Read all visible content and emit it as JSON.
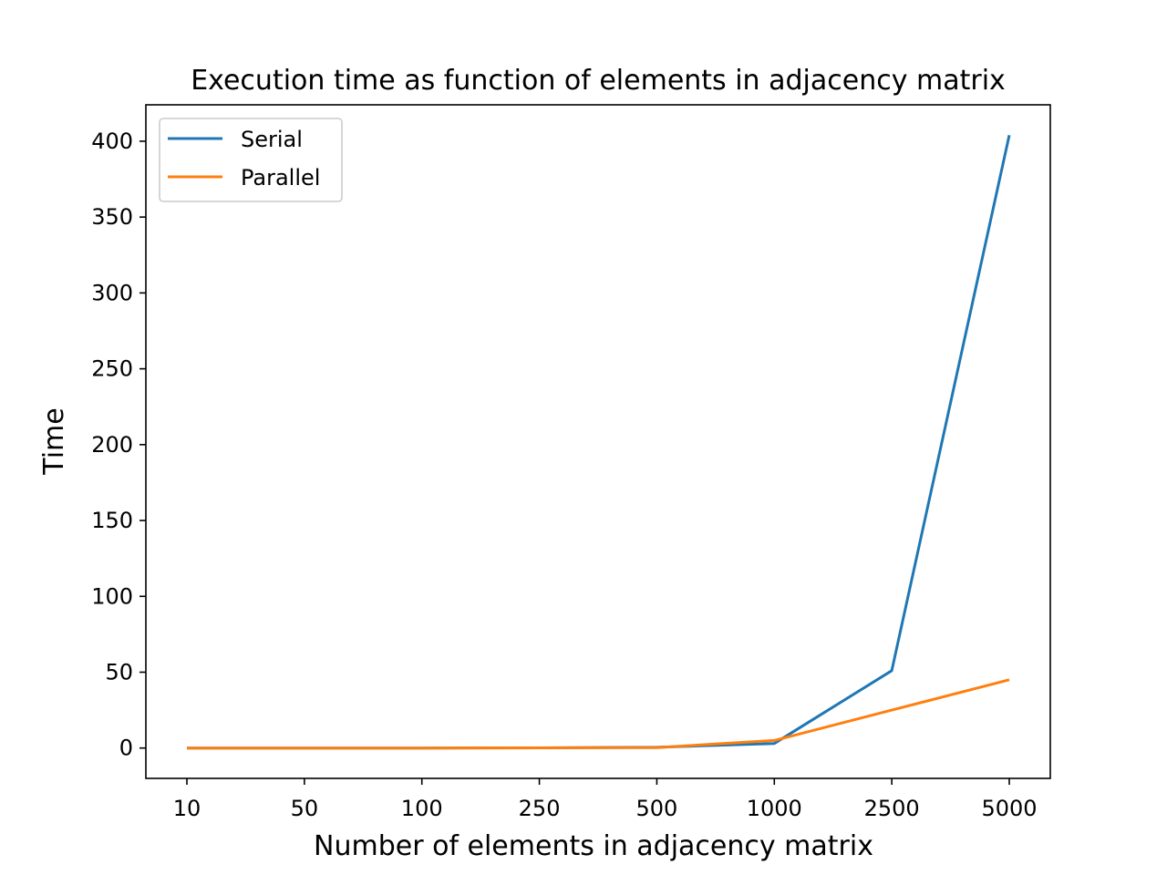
{
  "chart_data": {
    "type": "line",
    "title": "Execution time as function of elements in adjacency matrix",
    "xlabel": "Number of elements in adjacency matrix",
    "ylabel": "Time",
    "categories": [
      "10",
      "50",
      "100",
      "250",
      "500",
      "1000",
      "2500",
      "5000"
    ],
    "ylim": [
      -20,
      424
    ],
    "yticks": [
      0,
      50,
      100,
      150,
      200,
      250,
      300,
      350,
      400
    ],
    "grid": false,
    "legend_position": "upper-left",
    "series": [
      {
        "name": "Serial",
        "color": "#1f77b4",
        "values": [
          0.0,
          0.0,
          0.0,
          0.1,
          0.5,
          3.0,
          51.0,
          404.0
        ]
      },
      {
        "name": "Parallel",
        "color": "#ff7f0e",
        "values": [
          0.0,
          0.0,
          0.0,
          0.1,
          0.3,
          5.0,
          25.0,
          45.0
        ]
      }
    ]
  }
}
